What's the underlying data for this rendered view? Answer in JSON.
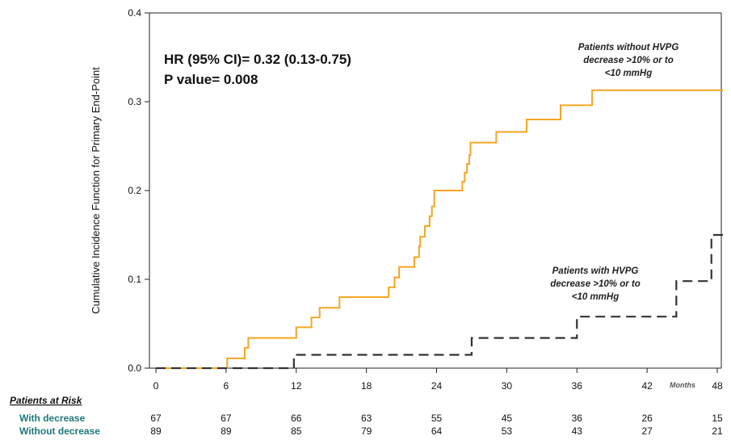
{
  "chart_data": {
    "type": "line",
    "title": "",
    "ylabel": "Cumulative Incidence Function for Primary End-Point",
    "xlabel": "Months",
    "xlim": [
      0,
      48
    ],
    "ylim": [
      0,
      0.4
    ],
    "x_ticks": [
      0,
      6,
      12,
      18,
      24,
      30,
      36,
      42,
      48
    ],
    "x_tick_labels": [
      "0",
      "6",
      "12",
      "18",
      "24",
      "30",
      "36",
      "42",
      "48"
    ],
    "y_ticks": [
      0.0,
      0.1,
      0.2,
      0.3,
      0.4
    ],
    "y_tick_labels": [
      "0.0",
      "0.1",
      "0.2",
      "0.3",
      "0.4"
    ],
    "stats_text": [
      "HR (95% CI)= 0.32 (0.13-0.75)",
      "P value= 0.008"
    ],
    "series": [
      {
        "name": "Patients without HVPG decrease >10% or to <10 mmHg",
        "annotation_lines": [
          "Patients without HVPG",
          "decrease >10% or to",
          "<10 mmHg"
        ],
        "color": "#f5a623",
        "style": "solid",
        "step_points": [
          [
            0,
            0.0
          ],
          [
            6.1,
            0.011
          ],
          [
            7.6,
            0.023
          ],
          [
            7.9,
            0.034
          ],
          [
            12,
            0.046
          ],
          [
            13.3,
            0.057
          ],
          [
            14,
            0.068
          ],
          [
            15.7,
            0.08
          ],
          [
            19.9,
            0.091
          ],
          [
            20.4,
            0.102
          ],
          [
            20.8,
            0.114
          ],
          [
            22.1,
            0.125
          ],
          [
            22.5,
            0.137
          ],
          [
            22.6,
            0.148
          ],
          [
            23,
            0.16
          ],
          [
            23.4,
            0.171
          ],
          [
            23.6,
            0.182
          ],
          [
            23.8,
            0.2
          ],
          [
            26.2,
            0.21
          ],
          [
            26.4,
            0.22
          ],
          [
            26.6,
            0.23
          ],
          [
            26.8,
            0.24
          ],
          [
            26.9,
            0.254
          ],
          [
            29.1,
            0.266
          ],
          [
            31.7,
            0.28
          ],
          [
            34.6,
            0.296
          ],
          [
            37.3,
            0.313
          ],
          [
            48.5,
            0.313
          ]
        ]
      },
      {
        "name": "Patients with HVPG decrease >10% or to <10 mmHg",
        "annotation_lines": [
          "Patients with HVPG",
          "decrease >10% or to",
          "<10 mmHg"
        ],
        "color": "#333333",
        "style": "dashed",
        "step_points": [
          [
            0,
            0.0
          ],
          [
            11.8,
            0.015
          ],
          [
            27,
            0.034
          ],
          [
            36,
            0.058
          ],
          [
            44.5,
            0.098
          ],
          [
            47.5,
            0.15
          ],
          [
            48.5,
            0.15
          ]
        ]
      }
    ]
  },
  "risk_table": {
    "title": "Patients at Risk",
    "rows": [
      {
        "label": "With decrease",
        "values": [
          "67",
          "67",
          "66",
          "63",
          "55",
          "45",
          "36",
          "26",
          "15"
        ]
      },
      {
        "label": "Without decrease",
        "values": [
          "89",
          "89",
          "85",
          "79",
          "64",
          "53",
          "43",
          "27",
          "21"
        ]
      }
    ]
  }
}
